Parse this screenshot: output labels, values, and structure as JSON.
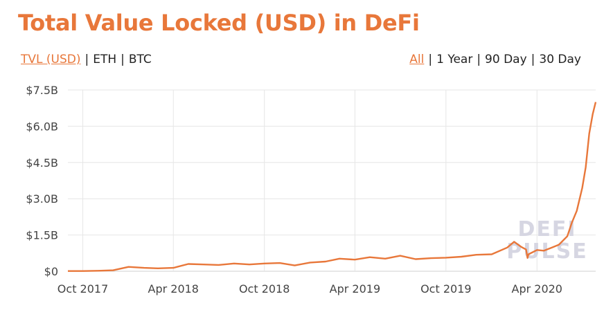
{
  "header": {
    "title": "Total Value Locked (USD) in DeFi"
  },
  "unit_toggle": {
    "options": [
      "TVL (USD)",
      "ETH",
      "BTC"
    ],
    "selected": "TVL (USD)"
  },
  "range_toggle": {
    "options": [
      "All",
      "1 Year",
      "90 Day",
      "30 Day"
    ],
    "selected": "All"
  },
  "watermark": {
    "line1": "DEFI",
    "line2": "PULSE"
  },
  "colors": {
    "accent": "#e8773a",
    "line": "#e8773a",
    "grid": "#e6e6e6",
    "watermark": "#d6d6e2"
  },
  "chart_data": {
    "type": "line",
    "title": "Total Value Locked (USD) in DeFi",
    "xlabel": "",
    "ylabel": "",
    "ylim": [
      0,
      7.5
    ],
    "y_unit": "USD billions",
    "y_ticks": [
      0,
      1.5,
      3.0,
      4.5,
      6.0,
      7.5
    ],
    "y_tick_labels": [
      "$0",
      "$1.5B",
      "$3.0B",
      "$4.5B",
      "$6.0B",
      "$7.5B"
    ],
    "x_tick_labels": [
      "Oct 2017",
      "Apr 2018",
      "Oct 2018",
      "Apr 2019",
      "Oct 2019",
      "Apr 2020"
    ],
    "x_tick_dates": [
      "2017-10-01",
      "2018-04-01",
      "2018-10-01",
      "2019-04-01",
      "2019-10-01",
      "2020-04-01"
    ],
    "grid": true,
    "legend": "none",
    "series": [
      {
        "x": [
          "2017-09-01",
          "2017-10-01",
          "2017-11-01",
          "2017-12-01",
          "2018-01-01",
          "2018-02-01",
          "2018-03-01",
          "2018-04-01",
          "2018-05-01",
          "2018-06-01",
          "2018-07-01",
          "2018-08-01",
          "2018-09-01",
          "2018-10-01",
          "2018-11-01",
          "2018-12-01",
          "2019-01-01",
          "2019-02-01",
          "2019-03-01",
          "2019-04-01",
          "2019-05-01",
          "2019-06-01",
          "2019-07-01",
          "2019-08-01",
          "2019-09-01",
          "2019-10-01",
          "2019-11-01",
          "2019-12-01",
          "2020-01-01",
          "2020-02-01",
          "2020-02-15",
          "2020-03-01",
          "2020-03-10",
          "2020-03-13",
          "2020-03-15",
          "2020-04-01",
          "2020-04-15",
          "2020-05-01",
          "2020-05-15",
          "2020-06-01",
          "2020-06-10",
          "2020-06-20",
          "2020-07-01",
          "2020-07-08",
          "2020-07-15",
          "2020-07-22",
          "2020-07-28"
        ],
        "values": [
          0.01,
          0.01,
          0.02,
          0.04,
          0.18,
          0.14,
          0.12,
          0.14,
          0.3,
          0.28,
          0.26,
          0.32,
          0.28,
          0.32,
          0.34,
          0.24,
          0.36,
          0.4,
          0.52,
          0.48,
          0.58,
          0.52,
          0.64,
          0.5,
          0.54,
          0.56,
          0.6,
          0.68,
          0.7,
          0.98,
          1.22,
          1.0,
          0.9,
          0.55,
          0.7,
          0.88,
          0.85,
          0.98,
          1.1,
          1.45,
          2.0,
          2.5,
          3.45,
          4.3,
          5.7,
          6.5,
          7.0
        ]
      }
    ]
  }
}
